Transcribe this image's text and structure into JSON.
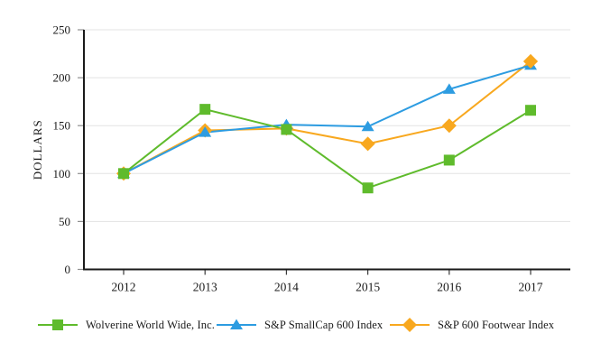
{
  "page": {
    "background": "#ffffff",
    "kind": "stock-performance-line-chart"
  },
  "chart_data": {
    "type": "line",
    "title": "",
    "xlabel": "",
    "ylabel": "DOLLARS",
    "categories": [
      "2012",
      "2013",
      "2014",
      "2015",
      "2016",
      "2017"
    ],
    "yticks": [
      0,
      50,
      100,
      150,
      200,
      250
    ],
    "ytick_labels": [
      "0",
      "50",
      "100",
      "150",
      "200",
      "250"
    ],
    "ylim": [
      0,
      250
    ],
    "grid": "horizontal",
    "legend_position": "bottom",
    "colors": {
      "axis": "#1a1a1a",
      "gridline": "#e3e3e3",
      "y_tick": "#8f8f8f",
      "x_tick": "#3a3a3a",
      "text": "#1a1a1a"
    },
    "series": [
      {
        "name": "Wolverine World Wide, Inc.",
        "marker": "square",
        "color": "#5fbb2c",
        "values": [
          100,
          167,
          146,
          85,
          114,
          166
        ]
      },
      {
        "name": "S&P SmallCap 600 Index",
        "marker": "triangle",
        "color": "#2d9ce1",
        "values": [
          100,
          143,
          151,
          149,
          188,
          213
        ]
      },
      {
        "name": "S&P 600 Footwear Index",
        "marker": "diamond",
        "color": "#f8a81f",
        "values": [
          100,
          145,
          147,
          131,
          150,
          217
        ]
      }
    ],
    "overlap_top": {
      "series": 2,
      "point": 5
    }
  }
}
